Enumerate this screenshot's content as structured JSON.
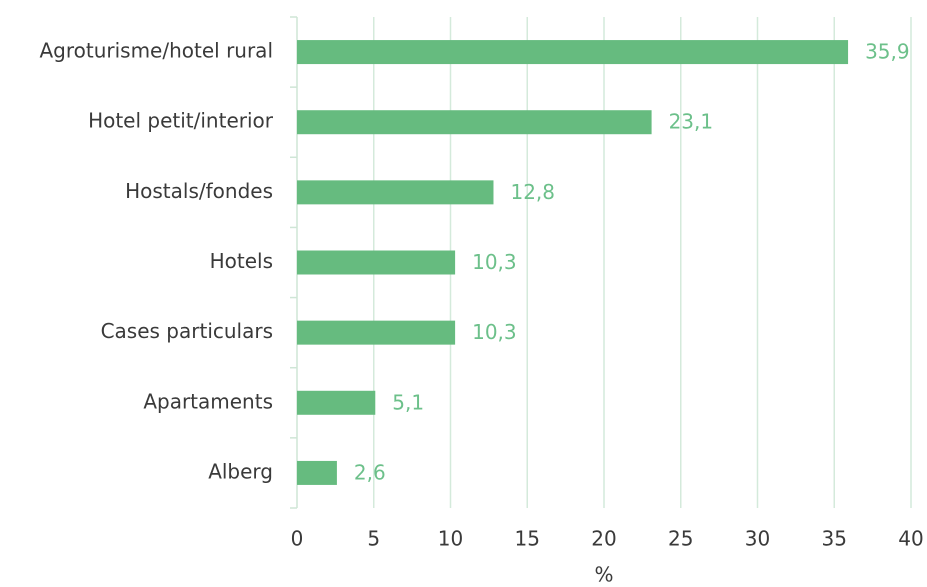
{
  "chart_data": {
    "type": "bar",
    "orientation": "horizontal",
    "categories": [
      "Agroturisme/hotel rural",
      "Hotel petit/interior",
      "Hostals/fondes",
      "Hotels",
      "Cases particulars",
      "Apartaments",
      "Alberg"
    ],
    "values": [
      35.9,
      23.1,
      12.8,
      10.3,
      10.3,
      5.1,
      2.6
    ],
    "value_labels": [
      "35,9",
      "23,1",
      "12,8",
      "10,3",
      "10,3",
      "5,1",
      "2,6"
    ],
    "color": "#66bb7f",
    "xlabel": "%",
    "xlim": [
      0,
      40
    ],
    "xticks": [
      0,
      5,
      10,
      15,
      20,
      25,
      30,
      35,
      40
    ],
    "grid": true
  }
}
